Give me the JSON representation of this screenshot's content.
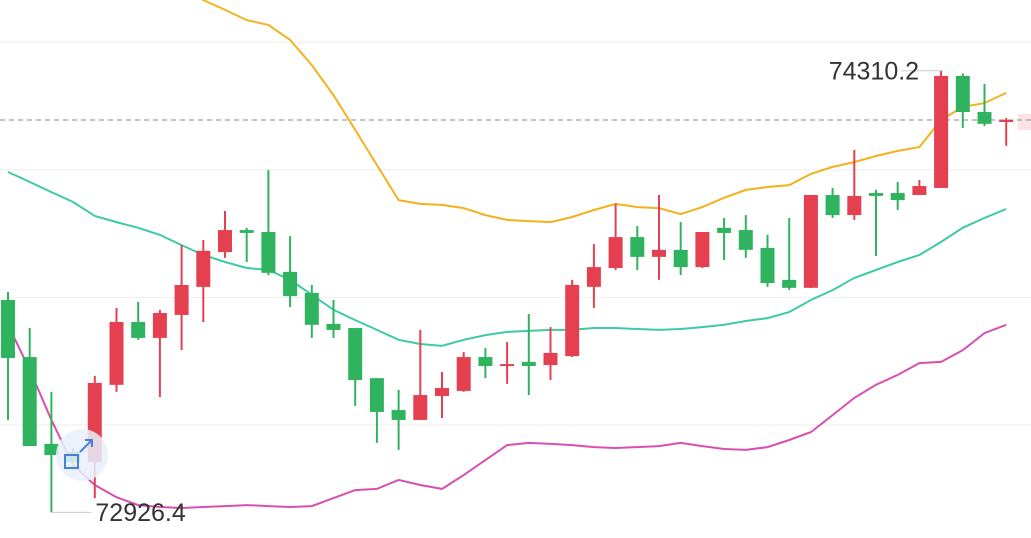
{
  "chart_data": {
    "type": "candlestick",
    "open": [
      73592,
      73413,
      73141,
      73116,
      73084,
      73326,
      73523,
      73473,
      73545,
      73633,
      73742,
      73811,
      73805,
      73680,
      73614,
      73517,
      73504,
      73347,
      73247,
      73216,
      73291,
      73307,
      73413,
      73385,
      73398,
      73388,
      73416,
      73633,
      73692,
      73789,
      73727,
      73749,
      73695,
      73818,
      73811,
      73755,
      73655,
      73630,
      73921,
      73858,
      73927,
      73927,
      73921,
      73943,
      74294,
      74181,
      74150
    ],
    "high": [
      73617,
      73504,
      73304,
      73128,
      73354,
      73567,
      73586,
      73561,
      73764,
      73780,
      73871,
      73818,
      73999,
      73792,
      73639,
      73592,
      73504,
      73347,
      73310,
      73498,
      73366,
      73429,
      73441,
      73460,
      73548,
      73507,
      73655,
      73767,
      73893,
      73824,
      73921,
      73836,
      73805,
      73849,
      73858,
      73796,
      73849,
      73921,
      73943,
      74062,
      73937,
      73962,
      73968,
      74310.2,
      74302,
      74269,
      74162
    ],
    "low": [
      73216,
      73134,
      72926.4,
      73059,
      72971,
      73304,
      73467,
      73288,
      73435,
      73523,
      73724,
      73711,
      73670,
      73570,
      73473,
      73473,
      73260,
      73144,
      73122,
      73216,
      73222,
      73304,
      73347,
      73329,
      73294,
      73341,
      73413,
      73567,
      73686,
      73686,
      73655,
      73670,
      73692,
      73717,
      73724,
      73633,
      73623,
      73630,
      73849,
      73843,
      73730,
      73874,
      73921,
      73943,
      74131,
      74137,
      74075
    ],
    "close": [
      73410,
      73134,
      73106,
      73084,
      73332,
      73523,
      73473,
      73551,
      73639,
      73746,
      73811,
      73802,
      73677,
      73604,
      73514,
      73498,
      73341,
      73241,
      73216,
      73294,
      73316,
      73413,
      73385,
      73391,
      73385,
      73426,
      73639,
      73695,
      73789,
      73727,
      73749,
      73695,
      73805,
      73802,
      73749,
      73645,
      73630,
      73921,
      73858,
      73918,
      73918,
      73905,
      73949,
      74294,
      74181,
      74144,
      74156
    ],
    "up_color": "#e5404f",
    "down_color": "#2fb35f",
    "overlays": [
      {
        "color": "#f2b21c",
        "values": [
          74720,
          74704,
          74689,
          74673,
          74657,
          74642,
          74620,
          74595,
          74563,
          74532,
          74501,
          74469,
          74454,
          74407,
          74328,
          74234,
          74125,
          74015,
          73905,
          73893,
          73890,
          73880,
          73858,
          73843,
          73839,
          73836,
          73852,
          73874,
          73893,
          73883,
          73880,
          73861,
          73883,
          73912,
          73937,
          73946,
          73952,
          73987,
          74009,
          74024,
          74043,
          74059,
          74071,
          74156,
          74197,
          74209,
          74241
        ]
      },
      {
        "color": "#3dcaa5",
        "values": [
          73993,
          73962,
          73930,
          73899,
          73855,
          73836,
          73818,
          73796,
          73764,
          73733,
          73711,
          73692,
          73686,
          73655,
          73608,
          73561,
          73529,
          73498,
          73467,
          73454,
          73448,
          73467,
          73482,
          73492,
          73495,
          73498,
          73498,
          73504,
          73504,
          73501,
          73498,
          73501,
          73507,
          73514,
          73526,
          73535,
          73554,
          73592,
          73623,
          73661,
          73686,
          73711,
          73733,
          73774,
          73818,
          73849,
          73877
        ]
      },
      {
        "color": "#d84fb2",
        "values": [
          73514,
          73373,
          73216,
          73075,
          73012,
          72974,
          72949,
          72943,
          72940,
          72943,
          72946,
          72949,
          72946,
          72943,
          72946,
          72971,
          72996,
          73000,
          73028,
          73012,
          73000,
          73043,
          73090,
          73137,
          73144,
          73141,
          73137,
          73131,
          73128,
          73131,
          73134,
          73144,
          73134,
          73125,
          73122,
          73131,
          73153,
          73178,
          73231,
          73285,
          73326,
          73357,
          73394,
          73398,
          73435,
          73488,
          73514
        ]
      }
    ],
    "ylim": [
      72846,
      74532
    ],
    "yticks": [
      73200,
      73600,
      74000,
      74400
    ],
    "grid": true
  }
}
